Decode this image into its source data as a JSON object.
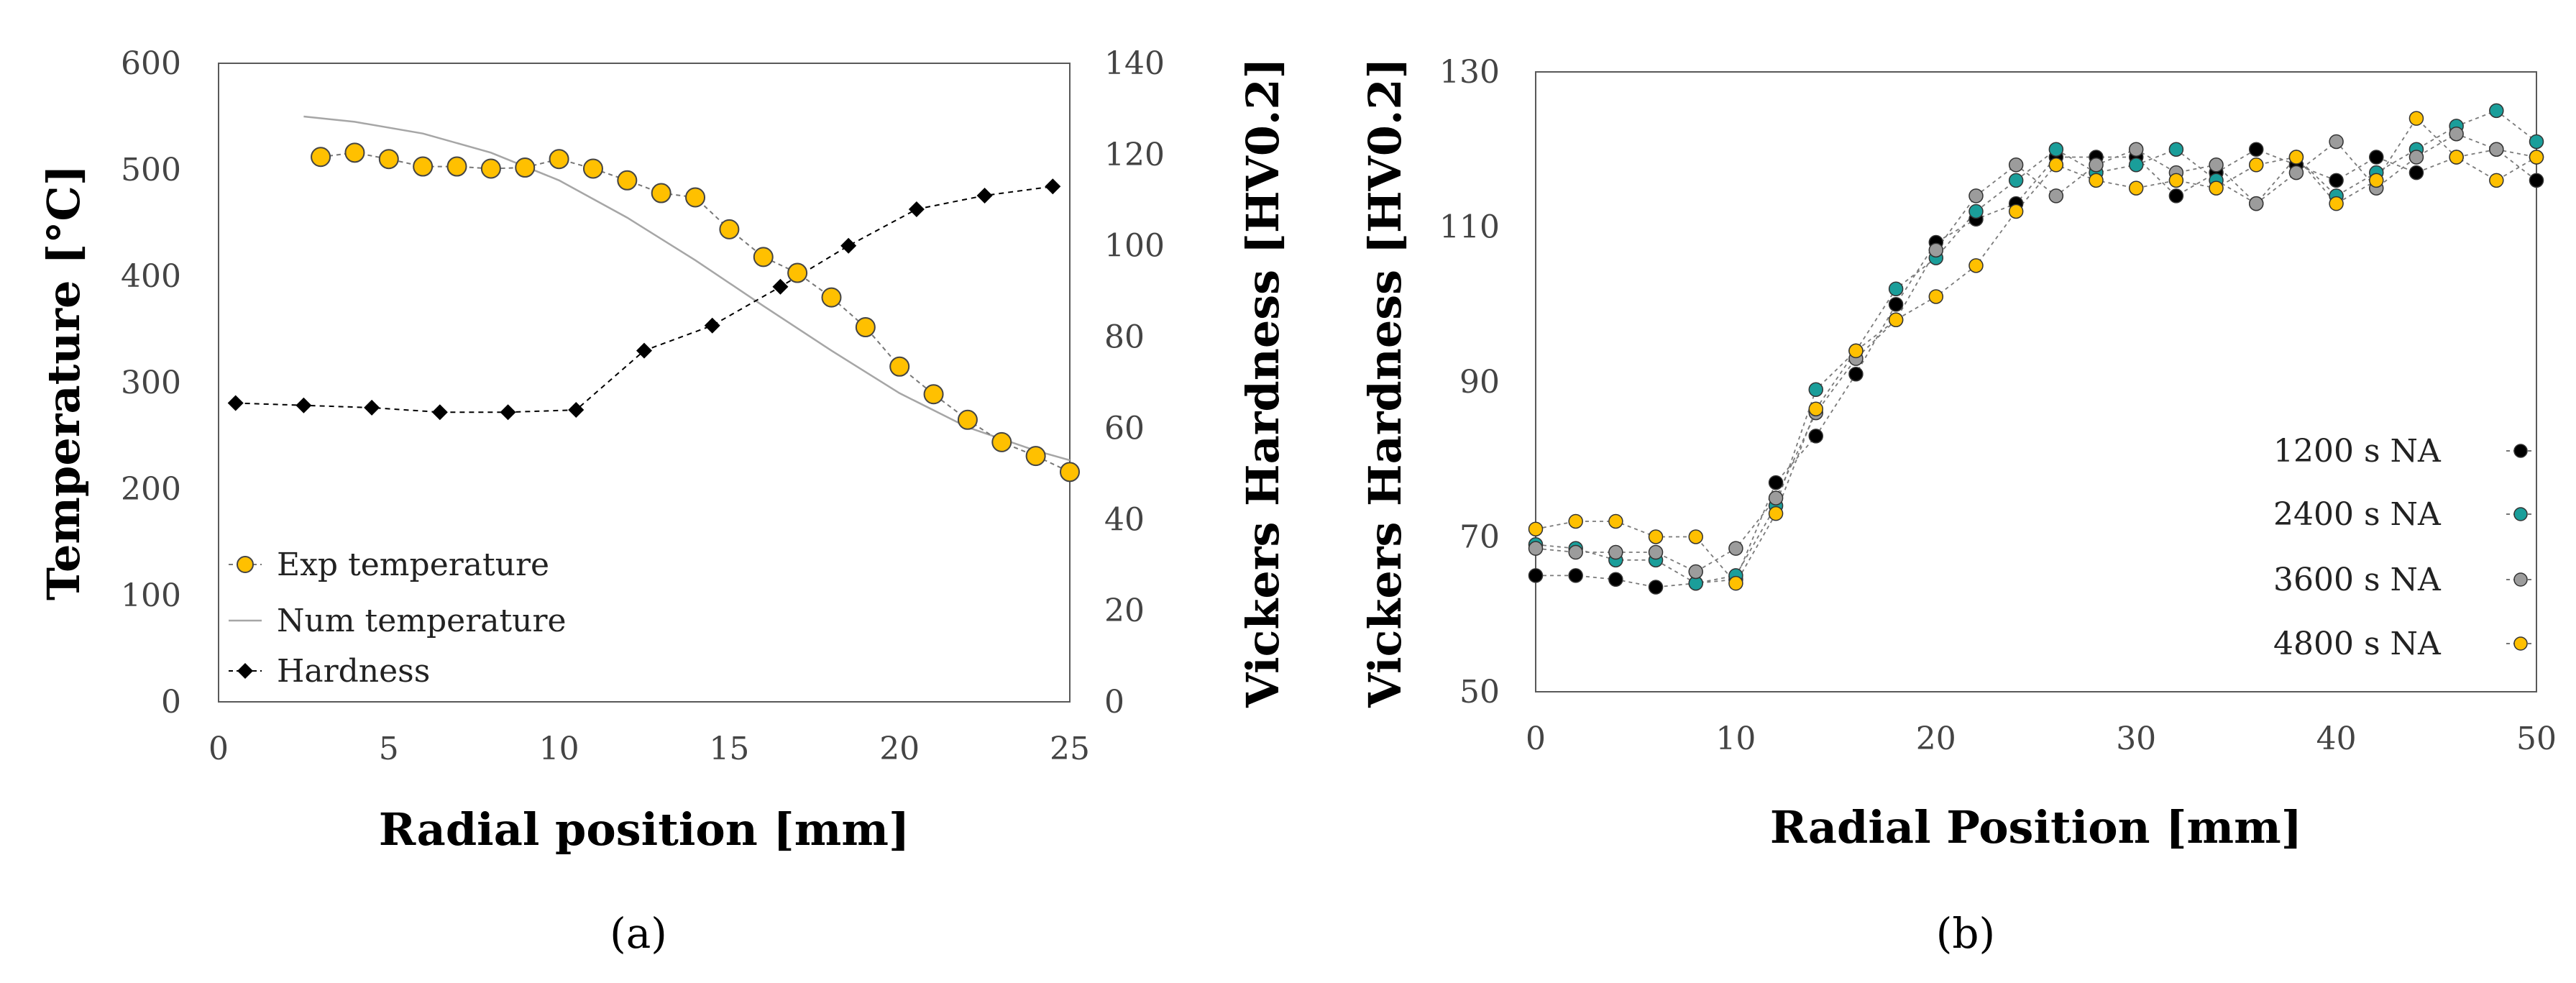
{
  "chart_data": [
    {
      "id": "a",
      "type": "scatter-line",
      "caption": "(a)",
      "xlabel": "Radial position [mm]",
      "ylabel_left": "Temperature [°C]",
      "ylabel_right": "Vickers Hardness [HV0.2]",
      "xlim": [
        0,
        25
      ],
      "ylim_left": [
        0,
        600
      ],
      "ylim_right": [
        0,
        140
      ],
      "xticks": [
        "0",
        "5",
        "10",
        "15",
        "20",
        "25"
      ],
      "yticks_left": [
        "0",
        "100",
        "200",
        "300",
        "400",
        "500",
        "600"
      ],
      "yticks_right": [
        "0",
        "20",
        "40",
        "60",
        "80",
        "100",
        "120",
        "140"
      ],
      "legend": [
        "Exp temperature",
        "Num temperature",
        "Hardness"
      ],
      "series": [
        {
          "name": "Exp temperature",
          "axis": "left",
          "color": "#FFC000",
          "marker": "circle",
          "x": [
            3,
            4,
            5,
            6,
            7,
            8,
            9,
            10,
            11,
            12,
            13,
            14,
            15,
            16,
            17,
            18,
            19,
            20,
            21,
            22,
            23,
            24,
            25
          ],
          "y": [
            512,
            516,
            510,
            503,
            503,
            501,
            502,
            510,
            501,
            490,
            478,
            474,
            444,
            418,
            403,
            380,
            352,
            315,
            289,
            265,
            244,
            231,
            216
          ]
        },
        {
          "name": "Num temperature",
          "axis": "left",
          "color": "#A6A6A6",
          "marker": "none",
          "x": [
            2.5,
            4,
            6,
            8,
            10,
            12,
            14,
            16,
            18,
            20,
            22,
            24,
            25
          ],
          "y": [
            550,
            545,
            534,
            516,
            490,
            455,
            415,
            372,
            330,
            290,
            258,
            236,
            227
          ]
        },
        {
          "name": "Hardness",
          "axis": "right",
          "color": "#000000",
          "marker": "diamond",
          "x": [
            0.5,
            2.5,
            4.5,
            6.5,
            8.5,
            10.5,
            12.5,
            14.5,
            16.5,
            18.5,
            20.5,
            22.5,
            24.5
          ],
          "y": [
            65.5,
            65,
            64.5,
            63.5,
            63.5,
            64,
            77,
            82.5,
            91,
            100,
            108,
            111,
            113
          ]
        }
      ]
    },
    {
      "id": "b",
      "type": "scatter-line",
      "caption": "(b)",
      "xlabel": "Radial Position [mm]",
      "ylabel": "Vickers Hardness [HV0.2]",
      "xlim": [
        0,
        50
      ],
      "ylim": [
        50,
        130
      ],
      "xticks": [
        "0",
        "10",
        "20",
        "30",
        "40",
        "50"
      ],
      "yticks": [
        "50",
        "70",
        "90",
        "110",
        "130"
      ],
      "legend": [
        "1200 s NA",
        "2400 s NA",
        "3600 s NA",
        "4800 s NA"
      ],
      "series": [
        {
          "name": "1200 s NA",
          "color": "#000000",
          "x": [
            0,
            2,
            4,
            6,
            8,
            10,
            12,
            14,
            16,
            18,
            20,
            22,
            24,
            26,
            28,
            30,
            32,
            34,
            36,
            38,
            40,
            42,
            44,
            46,
            48,
            50
          ],
          "y": [
            65,
            65,
            64.5,
            63.5,
            64,
            64.5,
            77,
            83,
            91,
            100,
            108,
            111,
            113,
            119,
            119,
            119,
            114,
            117,
            120,
            118,
            116,
            119,
            117,
            119,
            120,
            116
          ]
        },
        {
          "name": "2400 s NA",
          "color": "#1A9E9A",
          "x": [
            0,
            2,
            4,
            6,
            8,
            10,
            12,
            14,
            16,
            18,
            20,
            22,
            24,
            26,
            28,
            30,
            32,
            34,
            36,
            38,
            40,
            42,
            44,
            46,
            48,
            50
          ],
          "y": [
            69,
            68.5,
            67,
            67,
            64,
            65,
            74,
            89,
            94,
            102,
            106,
            112,
            116,
            120,
            117,
            118,
            120,
            116,
            113,
            119,
            114,
            117,
            120,
            123,
            125,
            121
          ]
        },
        {
          "name": "3600 s NA",
          "color": "#9C9C9C",
          "x": [
            0,
            2,
            4,
            6,
            8,
            10,
            12,
            14,
            16,
            18,
            20,
            22,
            24,
            26,
            28,
            30,
            32,
            34,
            36,
            38,
            40,
            42,
            44,
            46,
            48,
            50
          ],
          "y": [
            68.5,
            68,
            68,
            68,
            65.5,
            68.5,
            75,
            86,
            93,
            98,
            107,
            114,
            118,
            114,
            118,
            120,
            117,
            118,
            113,
            117,
            121,
            115,
            119,
            122,
            120,
            119
          ]
        },
        {
          "name": "4800 s NA",
          "color": "#FFC000",
          "x": [
            0,
            2,
            4,
            6,
            8,
            10,
            12,
            14,
            16,
            18,
            20,
            22,
            24,
            26,
            28,
            30,
            32,
            34,
            36,
            38,
            40,
            42,
            44,
            46,
            48,
            50
          ],
          "y": [
            71,
            72,
            72,
            70,
            70,
            64,
            73,
            86.5,
            94,
            98,
            101,
            105,
            112,
            118,
            116,
            115,
            116,
            115,
            118,
            119,
            113,
            116,
            124,
            119,
            116,
            119
          ]
        }
      ]
    }
  ]
}
